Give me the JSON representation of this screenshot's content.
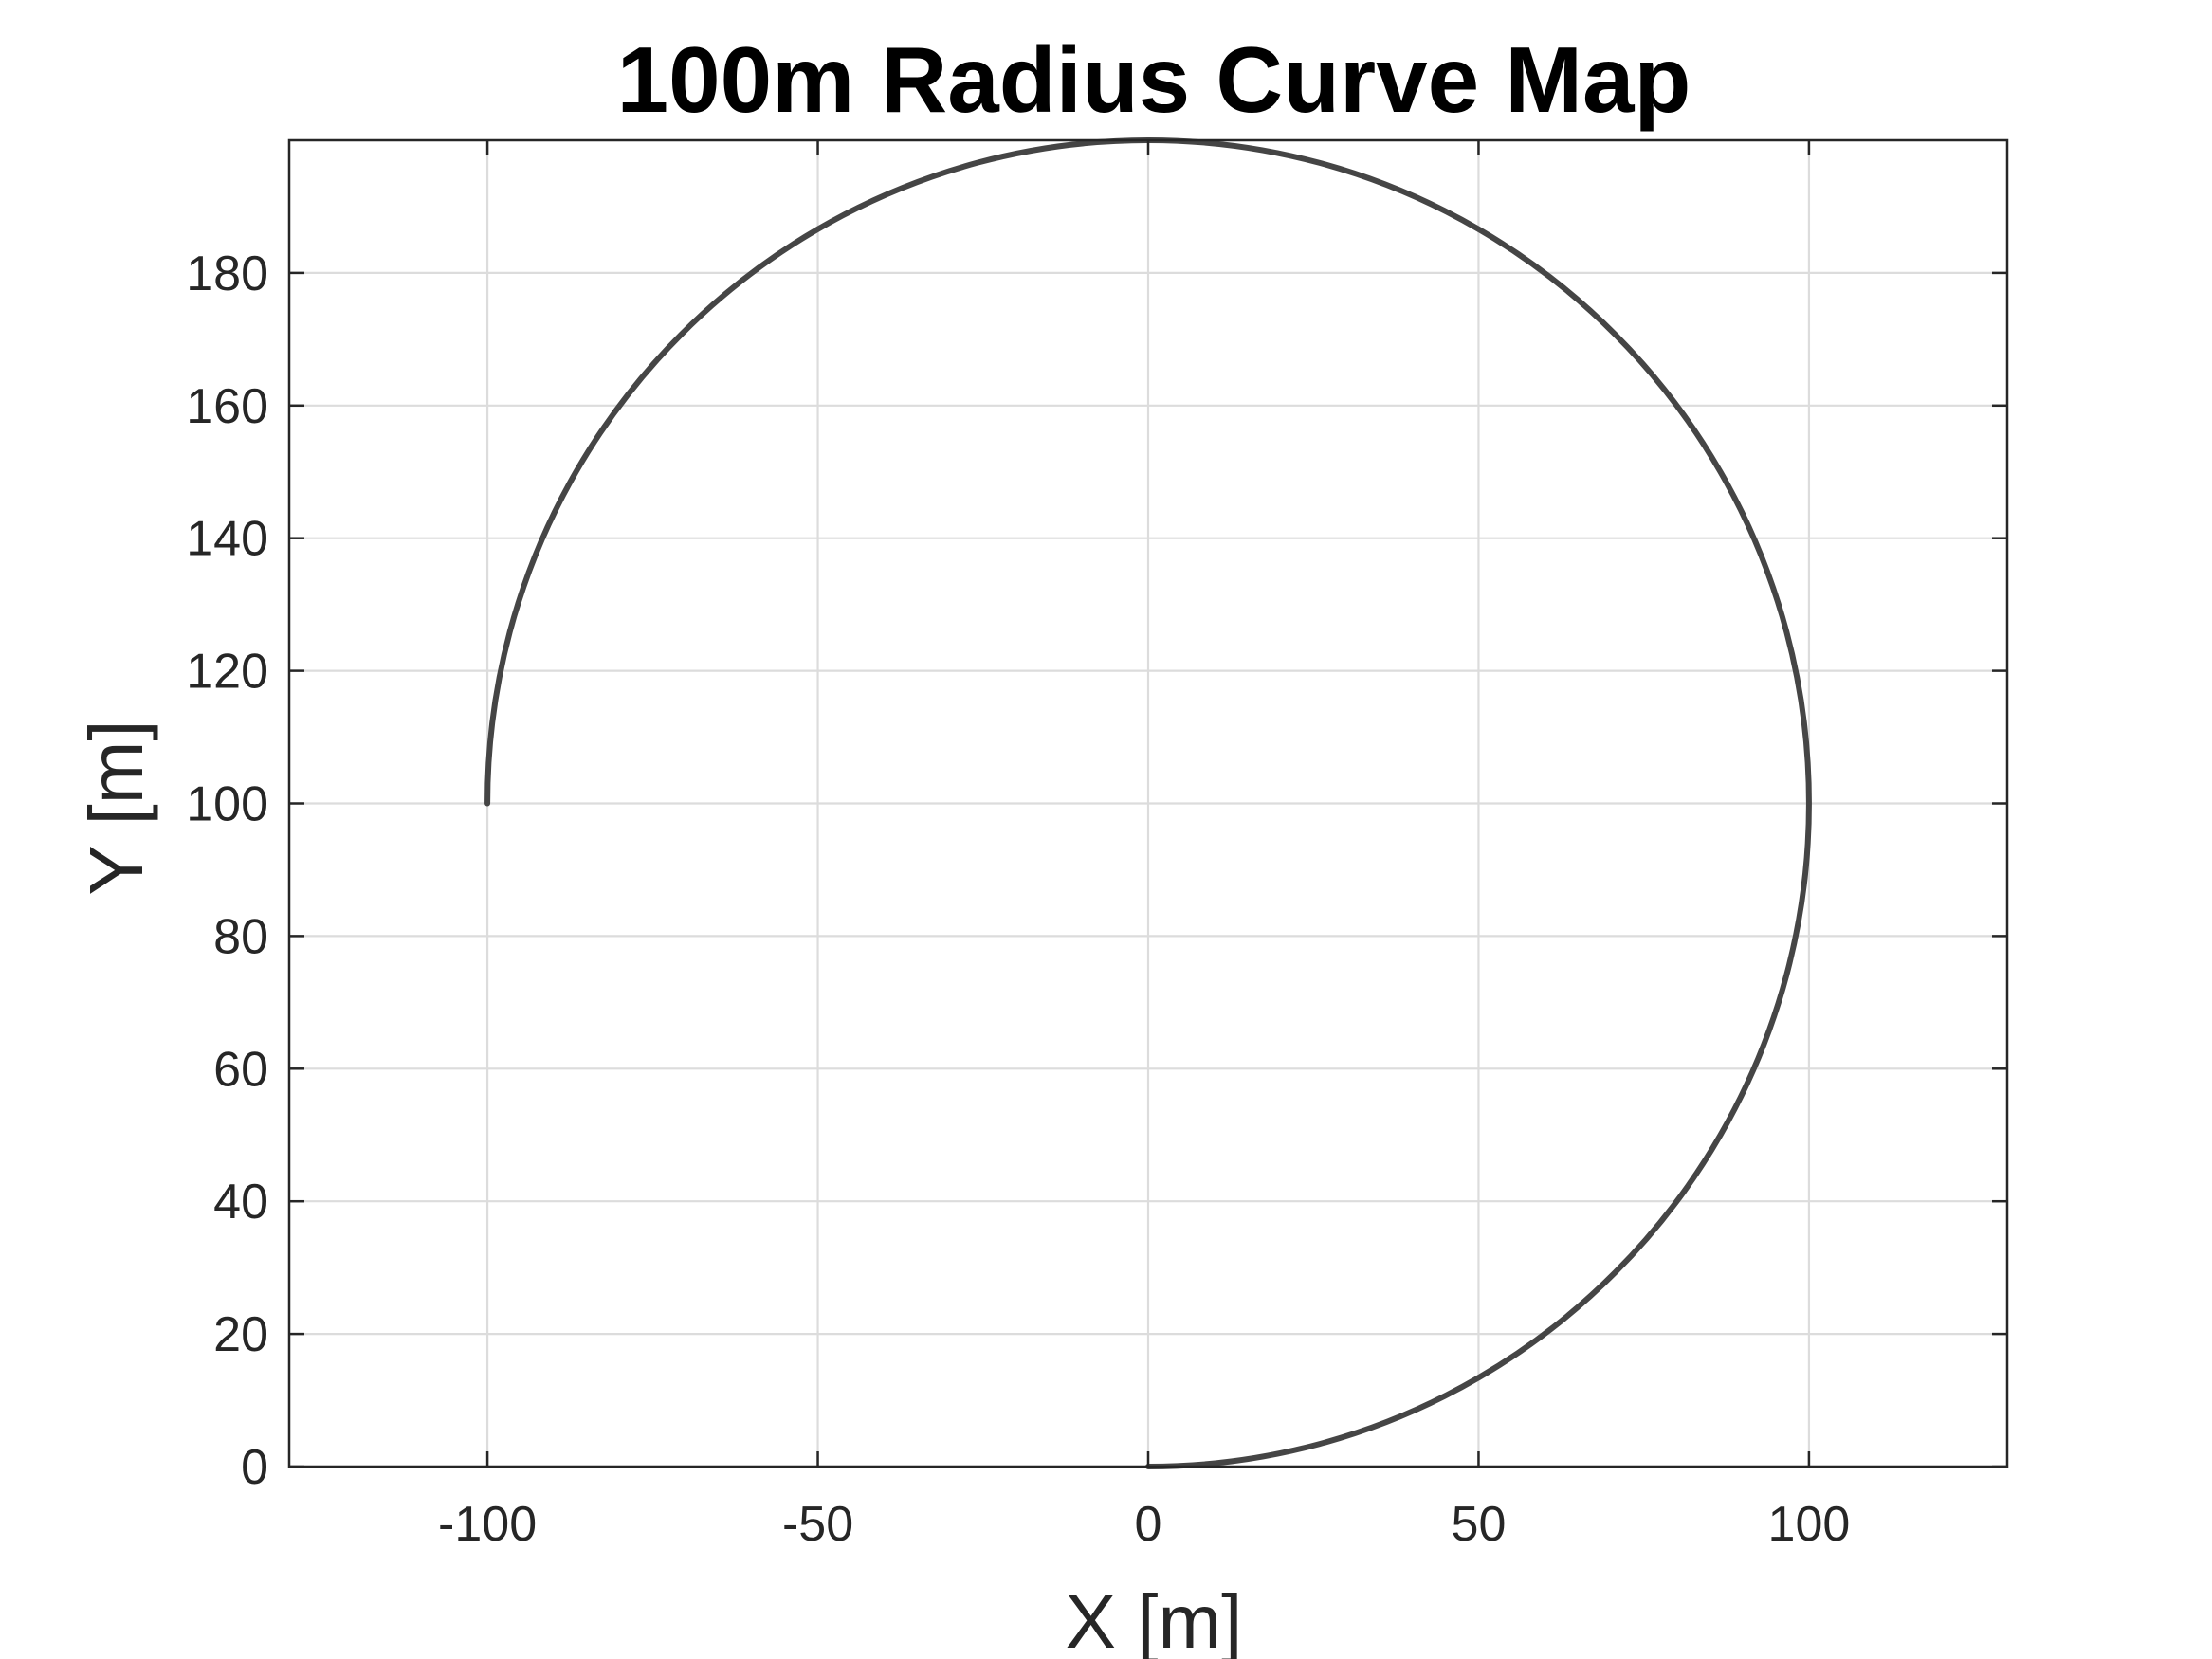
{
  "chart_data": {
    "type": "line",
    "title": "100m Radius Curve Map",
    "xlabel": "X [m]",
    "ylabel": "Y [m]",
    "xlim": [
      -130,
      130
    ],
    "ylim": [
      0,
      200
    ],
    "xticks": [
      -100,
      -50,
      0,
      50,
      100
    ],
    "yticks": [
      0,
      20,
      40,
      60,
      80,
      100,
      120,
      140,
      160,
      180
    ],
    "grid": true,
    "legend": "none",
    "series": [
      {
        "color": "#454545",
        "x": [
          0,
          25.9,
          50,
          70.7,
          86.6,
          96.6,
          100,
          96.6,
          86.6,
          70.7,
          50,
          25.9,
          0,
          -25.9,
          -50,
          -70.7,
          -86.6,
          -96.6,
          -100
        ],
        "y": [
          0,
          3.4,
          13.4,
          29.3,
          50,
          74.1,
          100,
          125.9,
          150,
          170.7,
          186.6,
          196.6,
          200,
          196.6,
          186.6,
          170.7,
          150,
          125.9,
          100
        ]
      }
    ]
  }
}
